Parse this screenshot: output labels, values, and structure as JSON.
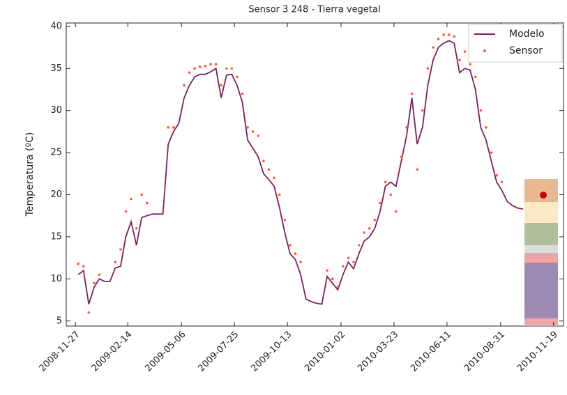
{
  "chart_data": {
    "type": "line",
    "title": "Sensor 3 248 - Tierra vegetal",
    "y_label": "Temperatura (ºC)",
    "x": [
      "2008-12-01",
      "2008-12-09",
      "2008-12-17",
      "2008-12-25",
      "2009-01-02",
      "2009-01-10",
      "2009-01-18",
      "2009-01-26",
      "2009-02-03",
      "2009-02-11",
      "2009-02-19",
      "2009-02-27",
      "2009-03-07",
      "2009-03-15",
      "2009-03-23",
      "2009-03-31",
      "2009-04-08",
      "2009-04-16",
      "2009-04-24",
      "2009-05-02",
      "2009-05-10",
      "2009-05-18",
      "2009-05-26",
      "2009-06-03",
      "2009-06-11",
      "2009-06-19",
      "2009-06-27",
      "2009-07-05",
      "2009-07-13",
      "2009-07-21",
      "2009-07-29",
      "2009-08-06",
      "2009-08-14",
      "2009-08-22",
      "2009-08-30",
      "2009-09-07",
      "2009-09-15",
      "2009-09-23",
      "2009-10-01",
      "2009-10-09",
      "2009-10-17",
      "2009-10-25",
      "2009-11-02",
      "2009-11-10",
      "2009-11-18",
      "2009-11-26",
      "2009-12-04",
      "2009-12-12",
      "2009-12-20",
      "2009-12-28",
      "2010-01-05",
      "2010-01-13",
      "2010-01-21",
      "2010-01-29",
      "2010-02-06",
      "2010-02-14",
      "2010-02-22",
      "2010-03-02",
      "2010-03-10",
      "2010-03-18",
      "2010-03-26",
      "2010-04-03",
      "2010-04-11",
      "2010-04-19",
      "2010-04-27",
      "2010-05-05",
      "2010-05-13",
      "2010-05-21",
      "2010-05-29",
      "2010-06-06",
      "2010-06-14",
      "2010-06-22",
      "2010-06-30",
      "2010-07-08",
      "2010-07-16",
      "2010-07-24",
      "2010-08-01",
      "2010-08-09",
      "2010-08-17",
      "2010-08-25",
      "2010-09-02",
      "2010-09-10",
      "2010-09-18",
      "2010-09-26",
      "2010-10-04"
    ],
    "series": [
      {
        "name": "Modelo",
        "type": "line",
        "color": "#7b1f5c",
        "values": [
          10.5,
          11,
          7,
          9,
          10,
          9.7,
          9.7,
          11.3,
          11.5,
          15,
          16.8,
          14,
          17.3,
          17.5,
          17.7,
          17.7,
          17.7,
          26,
          27.5,
          28.5,
          31.5,
          33,
          34,
          34.3,
          34.3,
          34.6,
          35,
          31.5,
          34.2,
          34.3,
          33,
          31,
          26.5,
          25.5,
          24.5,
          22.5,
          21.8,
          21,
          18.5,
          15.5,
          13,
          12.3,
          10.5,
          7.6,
          7.3,
          7.1,
          7,
          10.3,
          9.5,
          8.7,
          10.5,
          12,
          11.2,
          13,
          14.5,
          15,
          16,
          18,
          21,
          21.5,
          21,
          24,
          27,
          31.5,
          26,
          28,
          33,
          36,
          37.5,
          38,
          38.3,
          38,
          34.5,
          35,
          34.8,
          32.5,
          28,
          26.5,
          24,
          21.5,
          20.5,
          19.2,
          18.7,
          18.4,
          18.3
        ]
      },
      {
        "name": "Sensor",
        "type": "scatter",
        "color": "#ff5a2e",
        "values": [
          11.8,
          11.5,
          6,
          9.5,
          10.5,
          null,
          null,
          12,
          13.5,
          18,
          19.5,
          16,
          20,
          19,
          null,
          null,
          null,
          28,
          28,
          null,
          33,
          34.5,
          35,
          35.2,
          35.3,
          35.5,
          35.5,
          33,
          35,
          35,
          34,
          32,
          28,
          27.5,
          27,
          24,
          23,
          22,
          20,
          17,
          14,
          13,
          12,
          null,
          null,
          null,
          null,
          11,
          10,
          9,
          11.5,
          12.5,
          12,
          14,
          15.5,
          16,
          17,
          19,
          21.5,
          20,
          18,
          24.5,
          28,
          32,
          23,
          30,
          35,
          37.5,
          38.5,
          39,
          39,
          38.8,
          36,
          37,
          35.5,
          34,
          30,
          28,
          25,
          22.3,
          21.5,
          null,
          null,
          null,
          null
        ]
      }
    ],
    "xlim": [
      "2008-11-13",
      "2010-12-04"
    ],
    "xticks": [
      "2008-11-27",
      "2009-02-14",
      "2009-05-06",
      "2009-07-25",
      "2009-10-13",
      "2010-01-02",
      "2010-03-23",
      "2010-06-11",
      "2010-08-31",
      "2010-11-19"
    ],
    "ylim": [
      4.4,
      40.4
    ],
    "yticks": [
      5,
      10,
      15,
      20,
      25,
      30,
      35,
      40
    ],
    "grid": false,
    "legend": "upper right"
  }
}
